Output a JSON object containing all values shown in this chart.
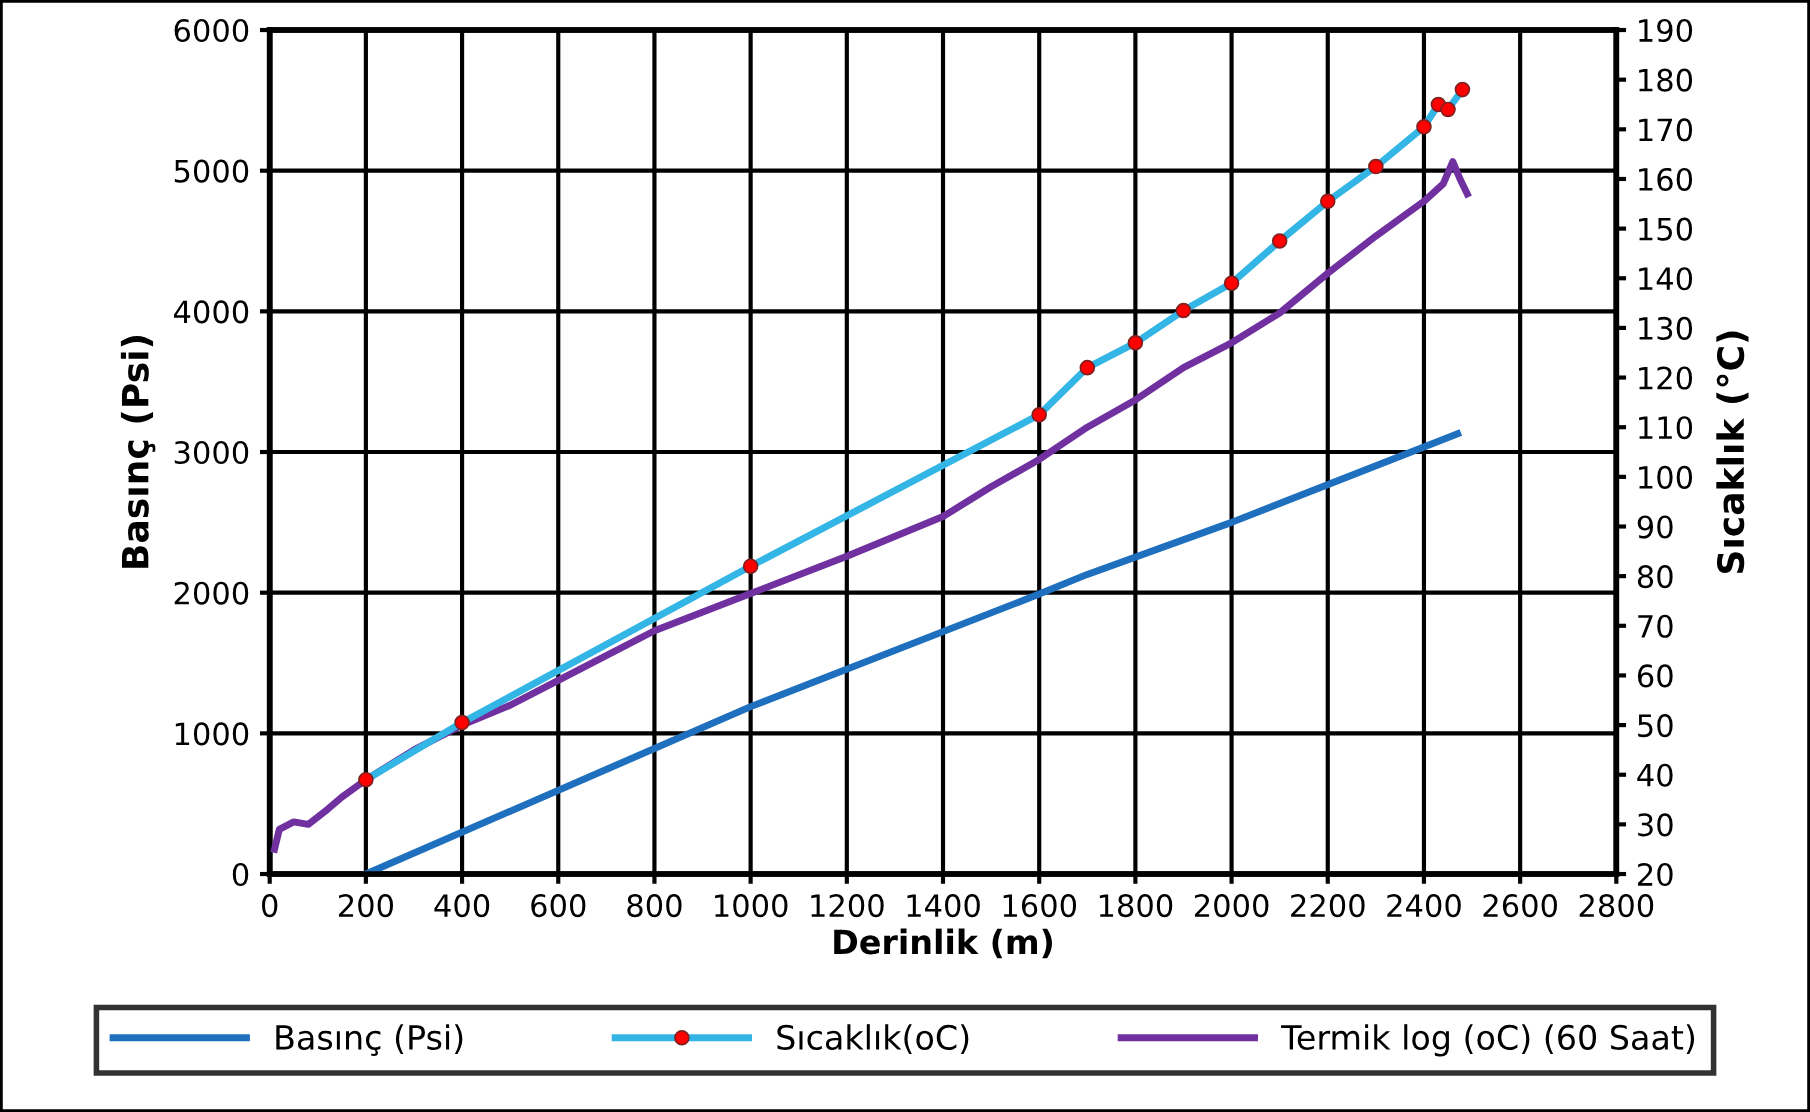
{
  "chart_data": {
    "type": "line",
    "xlabel": "Derinlik (m)",
    "ylabel": "Basınç (Psi)",
    "y2label": "Sıcaklık (°C)",
    "xlim": [
      0,
      2800
    ],
    "xticks": [
      0,
      200,
      400,
      600,
      800,
      1000,
      1200,
      1400,
      1600,
      1800,
      2000,
      2200,
      2400,
      2600,
      2800
    ],
    "ylim": [
      0,
      6000
    ],
    "yticks": [
      0,
      1000,
      2000,
      3000,
      4000,
      5000,
      6000
    ],
    "y2lim": [
      20,
      190
    ],
    "y2ticks": [
      20,
      30,
      40,
      50,
      60,
      70,
      80,
      90,
      100,
      110,
      120,
      130,
      140,
      150,
      160,
      170,
      180,
      190
    ],
    "grid": true,
    "legend": "bottom",
    "series": [
      {
        "name": "Basınç (Psi)",
        "color": "#1f6fbf",
        "marker": "none",
        "x": [
          200,
          1000,
          1600,
          1700,
          2000,
          2470
        ],
        "values": [
          0,
          1190,
          1990,
          2130,
          2500,
          3130
        ]
      },
      {
        "name": "Sıcaklık(oC)",
        "color": "#33b5e5",
        "marker": "circle",
        "axis": "y2",
        "x": [
          200,
          400,
          1000,
          1600,
          1700,
          1800,
          1900,
          2000,
          2100,
          2200,
          2300,
          2400,
          2430,
          2450,
          2480
        ],
        "values": [
          39,
          50.5,
          82,
          112.5,
          122,
          127,
          133.5,
          139,
          147.5,
          155.5,
          162.5,
          170.5,
          175,
          174,
          178
        ]
      },
      {
        "name": "Termik log (oC) (60 Saat)",
        "color": "#7030a0",
        "marker": "none",
        "axis": "y2",
        "x": [
          10,
          20,
          50,
          80,
          120,
          150,
          200,
          300,
          400,
          500,
          600,
          800,
          1000,
          1200,
          1400,
          1500,
          1600,
          1700,
          1800,
          1900,
          2000,
          2100,
          2200,
          2300,
          2400,
          2440,
          2460,
          2475,
          2490
        ],
        "values": [
          25,
          29,
          30.5,
          30,
          33,
          35.5,
          39,
          45,
          50,
          54,
          59,
          69,
          76.5,
          84,
          92,
          98,
          103.5,
          110,
          115.5,
          122,
          127,
          133,
          141,
          148.5,
          155.5,
          159,
          163.5,
          160,
          157
        ]
      }
    ]
  }
}
